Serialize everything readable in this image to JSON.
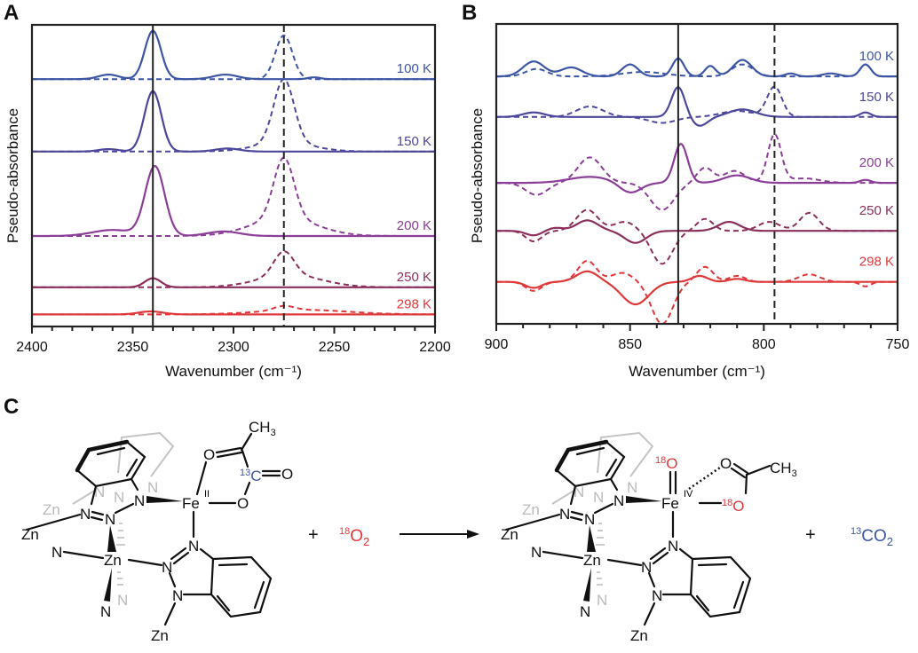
{
  "chart_data": [
    {
      "panel": "A",
      "type": "line",
      "xlabel": "Wavenumber (cm⁻¹)",
      "ylabel": "Pseudo-absorbance",
      "xlim": [
        2400,
        2200
      ],
      "ylim": [
        0,
        10
      ],
      "xticks": [
        2400,
        2350,
        2300,
        2250,
        2200
      ],
      "minor_tick_step": 10,
      "reference_lines": {
        "solid": 2340,
        "dashed": 2275
      },
      "peak_model": "gaussian sum [center, height, sigma] on baseline",
      "series": [
        {
          "name": "100 K",
          "color": "#3d55a5",
          "baseline": 8.2,
          "solid": [
            [
              2362,
              0.15,
              5
            ],
            [
              2340,
              1.6,
              4
            ],
            [
              2304,
              0.15,
              6
            ],
            [
              2260,
              0.06,
              3
            ]
          ],
          "dashed": [
            [
              2275,
              1.45,
              4.2
            ]
          ]
        },
        {
          "name": "150 K",
          "color": "#4c479c",
          "baseline": 5.8,
          "solid": [
            [
              2362,
              0.08,
              5
            ],
            [
              2340,
              2.0,
              4.2
            ],
            [
              2303,
              0.1,
              6
            ]
          ],
          "dashed": [
            [
              2275,
              2.1,
              5
            ],
            [
              2275,
              0.3,
              14
            ]
          ]
        },
        {
          "name": "200 K",
          "color": "#8b3e98",
          "baseline": 3.0,
          "solid": [
            [
              2360,
              0.2,
              10
            ],
            [
              2339,
              2.3,
              4.8
            ],
            [
              2305,
              0.15,
              8
            ]
          ],
          "dashed": [
            [
              2275,
              2.0,
              5
            ],
            [
              2275,
              0.6,
              16
            ]
          ]
        },
        {
          "name": "250 K",
          "color": "#8c2f5c",
          "baseline": 1.3,
          "solid": [
            [
              2340,
              0.3,
              4
            ]
          ],
          "dashed": [
            [
              2275,
              0.8,
              5
            ],
            [
              2272,
              0.4,
              16
            ]
          ]
        },
        {
          "name": "298 K",
          "color": "#e0383a",
          "baseline": 0.4,
          "solid": [
            [
              2341,
              0.1,
              6
            ]
          ],
          "dashed": [
            [
              2275,
              0.15,
              5
            ],
            [
              2265,
              0.15,
              22
            ]
          ]
        }
      ]
    },
    {
      "panel": "B",
      "type": "line",
      "xlabel": "Wavenumber (cm⁻¹)",
      "ylabel": "Pseudo-absorbance",
      "xlim": [
        900,
        750
      ],
      "ylim": [
        0,
        10
      ],
      "xticks": [
        900,
        850,
        800,
        750
      ],
      "minor_tick_step": 10,
      "reference_lines": {
        "solid": 832,
        "dashed": 796
      },
      "peak_model": "gaussian sum [center, height, sigma] on baseline",
      "series": [
        {
          "name": "100 K",
          "color": "#3d55a5",
          "baseline": 8.25,
          "solid": [
            [
              886,
              0.5,
              4
            ],
            [
              872,
              0.3,
              4
            ],
            [
              850,
              0.4,
              3
            ],
            [
              832,
              0.6,
              2.2
            ],
            [
              820,
              0.35,
              2
            ],
            [
              808,
              0.55,
              3.5
            ],
            [
              790,
              0.1,
              2
            ],
            [
              775,
              0.1,
              3
            ],
            [
              762,
              0.4,
              2
            ]
          ],
          "dashed": [
            [
              885,
              0.25,
              4
            ],
            [
              845,
              0.15,
              8
            ],
            [
              808,
              0.4,
              4
            ],
            [
              762,
              0.4,
              2
            ]
          ]
        },
        {
          "name": "150 K",
          "color": "#4c479c",
          "baseline": 6.9,
          "solid": [
            [
              886,
              0.15,
              4
            ],
            [
              832,
              1.0,
              2.5
            ],
            [
              824,
              -0.3,
              3
            ],
            [
              808,
              0.25,
              5
            ],
            [
              762,
              0.15,
              2
            ]
          ],
          "dashed": [
            [
              865,
              0.35,
              5
            ],
            [
              838,
              -0.2,
              5
            ],
            [
              810,
              0.2,
              6
            ],
            [
              796,
              1.0,
              2.8
            ]
          ]
        },
        {
          "name": "200 K",
          "color": "#8b3e98",
          "baseline": 4.7,
          "solid": [
            [
              865,
              0.2,
              8
            ],
            [
              850,
              -0.35,
              4
            ],
            [
              831,
              1.3,
              2.5
            ],
            [
              810,
              0.25,
              5
            ],
            [
              762,
              0.1,
              2
            ]
          ],
          "dashed": [
            [
              885,
              -0.4,
              4
            ],
            [
              865,
              0.85,
              4.5
            ],
            [
              838,
              -0.9,
              4.5
            ],
            [
              822,
              0.5,
              3
            ],
            [
              811,
              0.4,
              4
            ],
            [
              796,
              1.6,
              2.5
            ],
            [
              785,
              0.15,
              6
            ]
          ]
        },
        {
          "name": "250 K",
          "color": "#8c2f5c",
          "baseline": 3.1,
          "solid": [
            [
              886,
              -0.15,
              3
            ],
            [
              878,
              0.1,
              3
            ],
            [
              866,
              0.35,
              4
            ],
            [
              848,
              -0.4,
              4
            ],
            [
              813,
              0.3,
              4
            ]
          ],
          "dashed": [
            [
              886,
              -0.35,
              3
            ],
            [
              866,
              0.7,
              4
            ],
            [
              852,
              0.3,
              4
            ],
            [
              838,
              -1.1,
              4
            ],
            [
              822,
              0.4,
              3
            ],
            [
              798,
              0.3,
              4
            ],
            [
              783,
              0.6,
              3.5
            ]
          ]
        },
        {
          "name": "298 K",
          "color": "#e0383a",
          "baseline": 1.4,
          "solid": [
            [
              886,
              -0.2,
              3
            ],
            [
              866,
              0.35,
              4
            ],
            [
              848,
              -0.75,
              5
            ],
            [
              824,
              0.2,
              3
            ],
            [
              810,
              0.1,
              3
            ]
          ],
          "dashed": [
            [
              886,
              -0.3,
              3
            ],
            [
              866,
              0.7,
              3.5
            ],
            [
              853,
              0.3,
              4
            ],
            [
              838,
              -1.4,
              4
            ],
            [
              822,
              0.5,
              3
            ],
            [
              810,
              0.2,
              3
            ],
            [
              783,
              0.25,
              4
            ],
            [
              762,
              -0.15,
              2
            ]
          ]
        }
      ]
    }
  ],
  "panels": {
    "a": "A",
    "b": "B",
    "c": "C"
  },
  "scheme": {
    "atoms": {
      "zn": "Zn",
      "n": "N",
      "fe": "Fe",
      "o": "O",
      "c": "C",
      "ch3_c": "CH",
      "ch3_sub": "3"
    },
    "fe_ox_reactant": "II",
    "fe_ox_product": "IV",
    "isotope_13": "13",
    "isotope_18": "18",
    "plus": "+",
    "reagent": {
      "iso": "18",
      "text": "O",
      "sub": "2"
    },
    "byproduct": {
      "iso": "13",
      "text": "CO",
      "sub": "2"
    },
    "red": "#e0383a",
    "blue": "#3d55a5"
  }
}
